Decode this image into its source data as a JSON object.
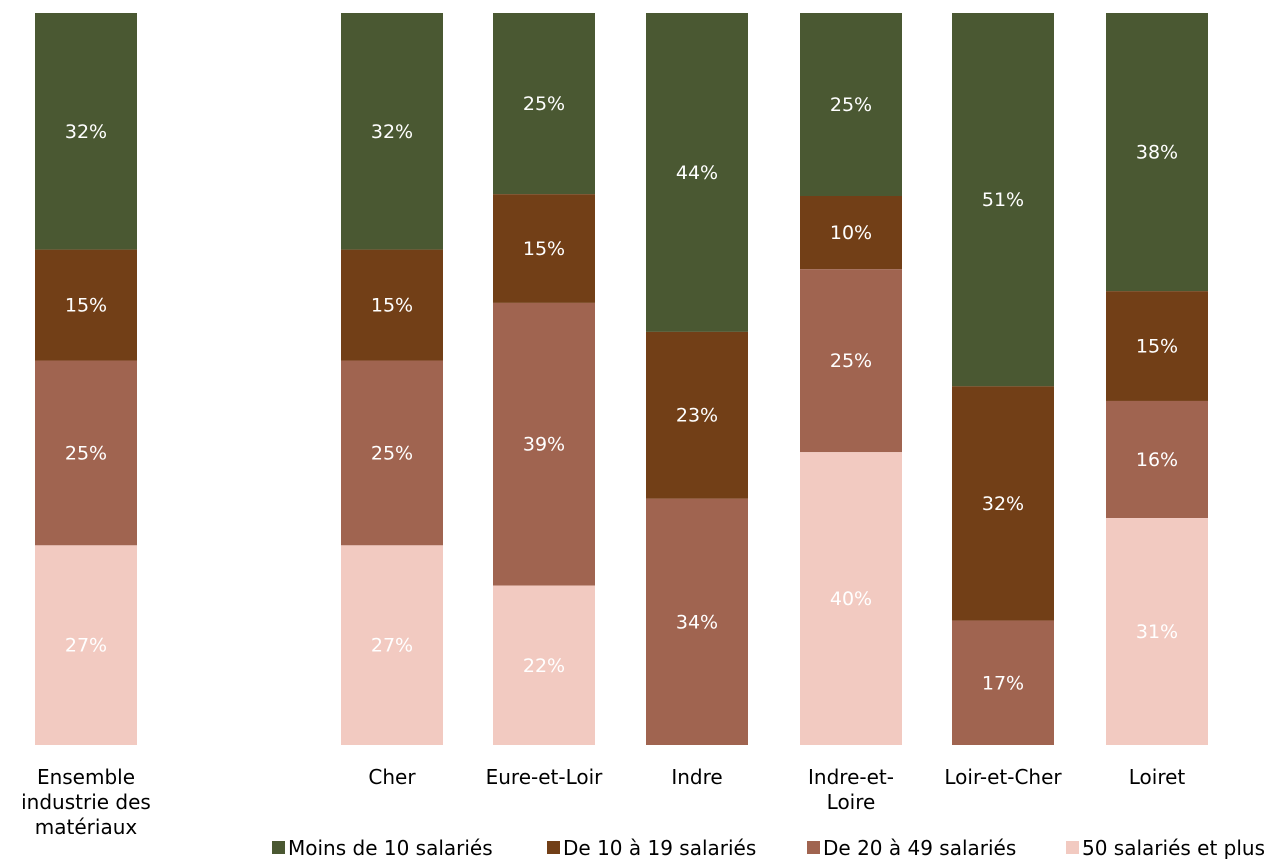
{
  "chart_data": {
    "type": "bar",
    "stacked": true,
    "orientation": "vertical",
    "categories": [
      "Ensemble industrie des matériaux",
      "Cher",
      "Eure-et-Loir",
      "Indre",
      "Indre-et-Loire",
      "Loir-et-Cher",
      "Loiret"
    ],
    "category_lines": [
      [
        "Ensemble",
        "industrie des",
        "matériaux"
      ],
      [
        "Cher"
      ],
      [
        "Eure-et-Loir"
      ],
      [
        "Indre"
      ],
      [
        "Indre-et-",
        "Loire"
      ],
      [
        "Loir-et-Cher"
      ],
      [
        "Loiret"
      ]
    ],
    "series": [
      {
        "name": "Moins de 10 salariés",
        "color": "#4a5832",
        "label_color": "#ffffff",
        "values": [
          32,
          32,
          25,
          44,
          25,
          51,
          38
        ]
      },
      {
        "name": "De 10 à 19 salariés",
        "color": "#723f17",
        "label_color": "#ffffff",
        "values": [
          15,
          15,
          15,
          23,
          10,
          32,
          15
        ]
      },
      {
        "name": "De 20 à 49 salariés",
        "color": "#a06450",
        "label_color": "#ffffff",
        "values": [
          25,
          25,
          39,
          34,
          25,
          17,
          16
        ]
      },
      {
        "name": "50 salariés et plus",
        "color": "#f2cac1",
        "label_color": "#ffffff",
        "values": [
          27,
          27,
          22,
          0,
          40,
          0,
          31
        ]
      }
    ],
    "value_suffix": "%",
    "legend_position": "bottom",
    "grid": false
  }
}
